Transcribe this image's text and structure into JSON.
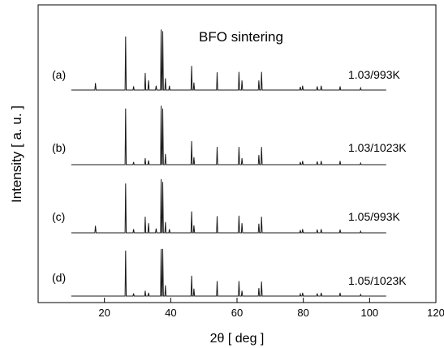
{
  "chart_data": {
    "type": "line",
    "title": "BFO sintering",
    "xlabel": "2θ [ deg ]",
    "ylabel": "Intensity  [ a. u. ]",
    "xlim": [
      0,
      120
    ],
    "xticks": [
      20,
      40,
      60,
      80,
      100,
      120
    ],
    "x_range_data": [
      10,
      105
    ],
    "y_ticks_shown": false,
    "grid": false,
    "series": [
      {
        "label": "(a)",
        "name": "1.03/993K",
        "peaks": [
          {
            "x": 17.3,
            "h": 0.13
          },
          {
            "x": 26.4,
            "h": 1.0
          },
          {
            "x": 28.8,
            "h": 0.07
          },
          {
            "x": 32.3,
            "h": 0.32
          },
          {
            "x": 33.3,
            "h": 0.18
          },
          {
            "x": 35.6,
            "h": 0.08
          },
          {
            "x": 37.1,
            "h": 1.13
          },
          {
            "x": 37.6,
            "h": 1.1
          },
          {
            "x": 38.4,
            "h": 0.22
          },
          {
            "x": 39.6,
            "h": 0.08
          },
          {
            "x": 46.3,
            "h": 0.45
          },
          {
            "x": 47.0,
            "h": 0.14
          },
          {
            "x": 54.0,
            "h": 0.33
          },
          {
            "x": 60.6,
            "h": 0.34
          },
          {
            "x": 61.5,
            "h": 0.18
          },
          {
            "x": 66.6,
            "h": 0.18
          },
          {
            "x": 67.4,
            "h": 0.34
          },
          {
            "x": 79.1,
            "h": 0.06
          },
          {
            "x": 79.8,
            "h": 0.08
          },
          {
            "x": 84.2,
            "h": 0.07
          },
          {
            "x": 85.4,
            "h": 0.08
          },
          {
            "x": 91.1,
            "h": 0.07
          },
          {
            "x": 97.3,
            "h": 0.04
          }
        ]
      },
      {
        "label": "(b)",
        "name": "1.03/1023K",
        "peaks": [
          {
            "x": 26.4,
            "h": 1.05
          },
          {
            "x": 28.8,
            "h": 0.05
          },
          {
            "x": 32.3,
            "h": 0.12
          },
          {
            "x": 33.3,
            "h": 0.08
          },
          {
            "x": 37.1,
            "h": 1.1
          },
          {
            "x": 37.6,
            "h": 1.05
          },
          {
            "x": 38.4,
            "h": 0.2
          },
          {
            "x": 46.3,
            "h": 0.44
          },
          {
            "x": 47.0,
            "h": 0.14
          },
          {
            "x": 54.0,
            "h": 0.33
          },
          {
            "x": 60.6,
            "h": 0.33
          },
          {
            "x": 61.5,
            "h": 0.12
          },
          {
            "x": 66.6,
            "h": 0.18
          },
          {
            "x": 67.4,
            "h": 0.33
          },
          {
            "x": 79.1,
            "h": 0.05
          },
          {
            "x": 79.8,
            "h": 0.07
          },
          {
            "x": 84.2,
            "h": 0.06
          },
          {
            "x": 85.4,
            "h": 0.07
          },
          {
            "x": 91.1,
            "h": 0.07
          },
          {
            "x": 97.3,
            "h": 0.03
          }
        ]
      },
      {
        "label": "(c)",
        "name": "1.05/993K",
        "peaks": [
          {
            "x": 17.3,
            "h": 0.13
          },
          {
            "x": 26.4,
            "h": 0.92
          },
          {
            "x": 28.8,
            "h": 0.07
          },
          {
            "x": 32.3,
            "h": 0.3
          },
          {
            "x": 33.3,
            "h": 0.18
          },
          {
            "x": 35.6,
            "h": 0.08
          },
          {
            "x": 37.1,
            "h": 1.0
          },
          {
            "x": 37.6,
            "h": 0.95
          },
          {
            "x": 38.4,
            "h": 0.2
          },
          {
            "x": 39.6,
            "h": 0.07
          },
          {
            "x": 46.3,
            "h": 0.4
          },
          {
            "x": 47.0,
            "h": 0.14
          },
          {
            "x": 54.0,
            "h": 0.31
          },
          {
            "x": 60.6,
            "h": 0.32
          },
          {
            "x": 61.5,
            "h": 0.18
          },
          {
            "x": 66.6,
            "h": 0.17
          },
          {
            "x": 67.4,
            "h": 0.3
          },
          {
            "x": 79.1,
            "h": 0.05
          },
          {
            "x": 79.8,
            "h": 0.07
          },
          {
            "x": 84.2,
            "h": 0.06
          },
          {
            "x": 85.4,
            "h": 0.07
          },
          {
            "x": 91.1,
            "h": 0.06
          },
          {
            "x": 97.3,
            "h": 0.03
          }
        ]
      },
      {
        "label": "(d)",
        "name": "1.05/1023K",
        "peaks": [
          {
            "x": 26.4,
            "h": 0.85
          },
          {
            "x": 28.8,
            "h": 0.05
          },
          {
            "x": 32.3,
            "h": 0.1
          },
          {
            "x": 33.3,
            "h": 0.06
          },
          {
            "x": 37.1,
            "h": 0.88
          },
          {
            "x": 37.6,
            "h": 0.88
          },
          {
            "x": 38.4,
            "h": 0.2
          },
          {
            "x": 46.3,
            "h": 0.38
          },
          {
            "x": 47.0,
            "h": 0.14
          },
          {
            "x": 54.0,
            "h": 0.28
          },
          {
            "x": 60.6,
            "h": 0.28
          },
          {
            "x": 61.5,
            "h": 0.1
          },
          {
            "x": 66.6,
            "h": 0.15
          },
          {
            "x": 67.4,
            "h": 0.27
          },
          {
            "x": 79.1,
            "h": 0.04
          },
          {
            "x": 79.8,
            "h": 0.06
          },
          {
            "x": 84.2,
            "h": 0.05
          },
          {
            "x": 85.4,
            "h": 0.06
          },
          {
            "x": 91.1,
            "h": 0.06
          },
          {
            "x": 97.3,
            "h": 0.03
          }
        ]
      }
    ]
  }
}
